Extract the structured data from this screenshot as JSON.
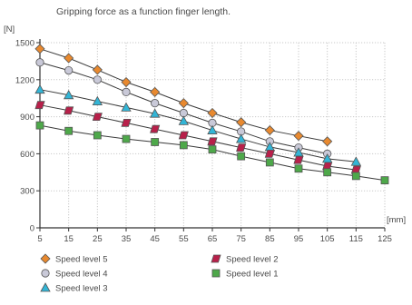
{
  "chart_data": {
    "type": "line",
    "title": "Gripping force as a function finger length.",
    "ylabel": "[N]",
    "xlabel": "[mm]",
    "ylim": [
      0,
      1500
    ],
    "xlim": [
      5,
      125
    ],
    "yticks": [
      0,
      300,
      600,
      900,
      1200,
      1500
    ],
    "xticks": [
      5,
      15,
      25,
      35,
      45,
      55,
      65,
      75,
      85,
      95,
      105,
      115,
      125
    ],
    "grid": true,
    "series": [
      {
        "name": "Speed level 5",
        "marker": "diamond",
        "color": "#e8892f",
        "x": [
          5,
          15,
          25,
          35,
          45,
          55,
          65,
          75,
          85,
          95,
          105
        ],
        "values": [
          1450,
          1375,
          1280,
          1180,
          1100,
          1010,
          930,
          855,
          790,
          745,
          700
        ]
      },
      {
        "name": "Speed level 4",
        "marker": "circle",
        "color": "#c9c9d8",
        "x": [
          5,
          15,
          25,
          35,
          45,
          55,
          65,
          75,
          85,
          95,
          105
        ],
        "values": [
          1340,
          1275,
          1200,
          1100,
          1010,
          930,
          850,
          780,
          700,
          650,
          600
        ]
      },
      {
        "name": "Speed level 3",
        "marker": "triangle",
        "color": "#33b5d6",
        "x": [
          5,
          15,
          25,
          35,
          45,
          55,
          65,
          75,
          85,
          95,
          105,
          115
        ],
        "values": [
          1120,
          1075,
          1025,
          975,
          925,
          865,
          790,
          720,
          655,
          610,
          560,
          535
        ]
      },
      {
        "name": "Speed level 2",
        "marker": "parallelogram",
        "color": "#b8204a",
        "x": [
          5,
          15,
          25,
          35,
          45,
          55,
          65,
          75,
          85,
          95,
          105,
          115
        ],
        "values": [
          995,
          950,
          900,
          850,
          800,
          750,
          700,
          650,
          600,
          550,
          500,
          470
        ]
      },
      {
        "name": "Speed level 1",
        "marker": "square",
        "color": "#4ea84a",
        "x": [
          5,
          15,
          25,
          35,
          45,
          55,
          65,
          75,
          85,
          95,
          105,
          115,
          125
        ],
        "values": [
          830,
          785,
          750,
          720,
          695,
          670,
          635,
          580,
          530,
          480,
          450,
          420,
          385
        ]
      }
    ],
    "legend": {
      "placement": "bottom",
      "items": [
        "Speed level 5",
        "Speed level 2",
        "Speed level 4",
        "Speed level 1",
        "Speed level 3"
      ]
    }
  }
}
